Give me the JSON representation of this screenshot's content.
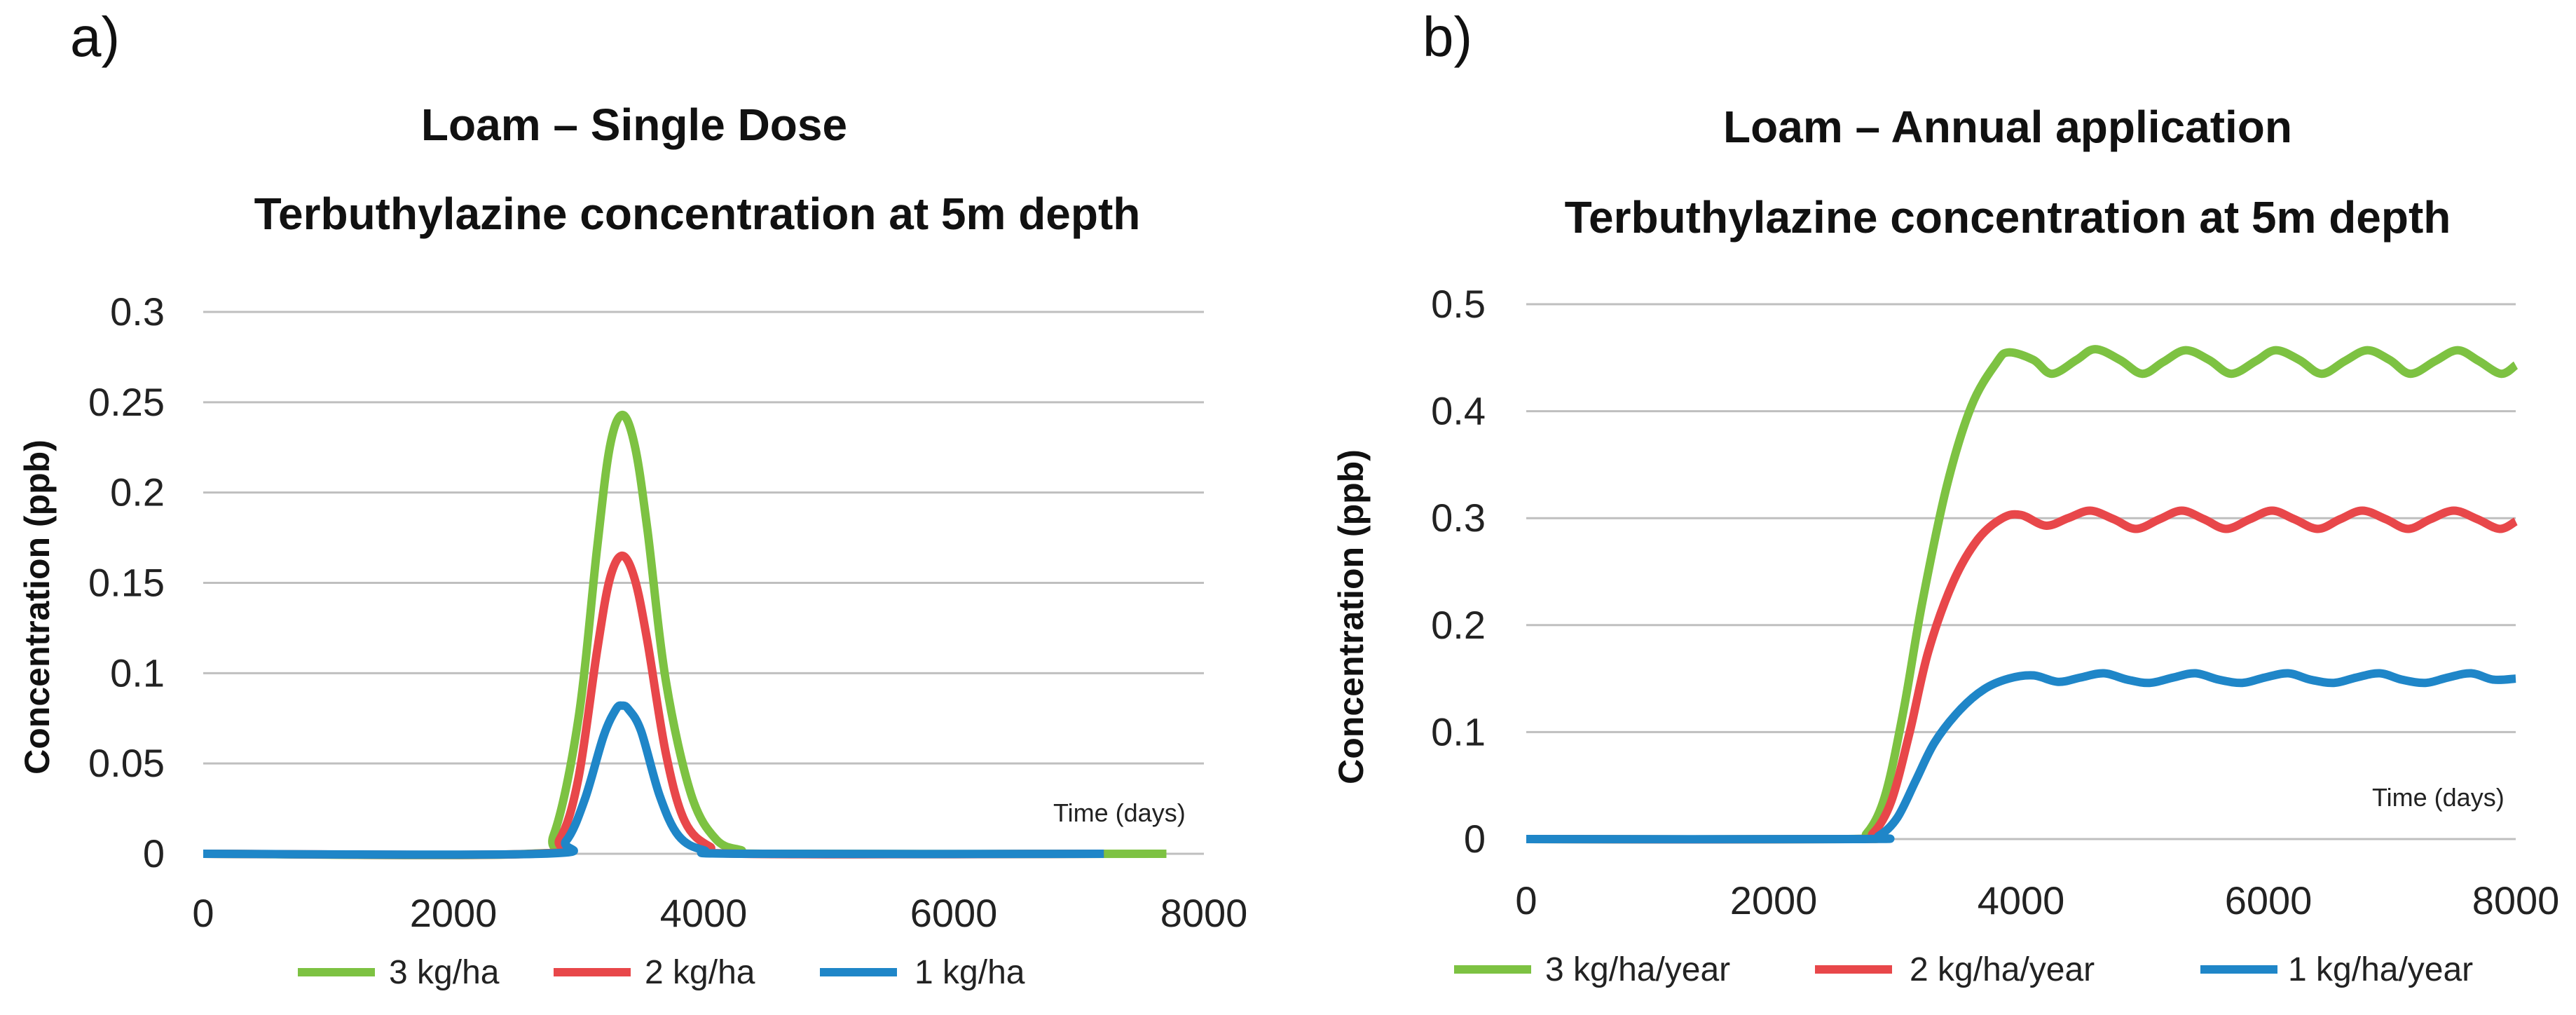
{
  "chart_data": [
    {
      "panel_label": "a)",
      "type": "line",
      "title": [
        "Loam – Single Dose",
        "Terbuthylazine concentration at 5m depth"
      ],
      "ylabel": "Concentration (ppb)",
      "xlabel": "Time (days)",
      "xlim": [
        0,
        8000
      ],
      "ylim": [
        0,
        0.3
      ],
      "xticks": [
        0,
        2000,
        4000,
        6000,
        8000
      ],
      "yticks": [
        0,
        0.05,
        0.1,
        0.15,
        0.2,
        0.25,
        0.3
      ],
      "ytick_labels": [
        "0",
        "0.05",
        "0.1",
        "0.15",
        "0.2",
        "0.25",
        "0.3"
      ],
      "grid": true,
      "legend_position": "bottom",
      "series": [
        {
          "name": "3 kg/ha",
          "color": "#7dc242",
          "x": [
            0,
            2600,
            2800,
            3000,
            3150,
            3250,
            3350,
            3450,
            3550,
            3700,
            3900,
            4100,
            4300,
            4500,
            7700
          ],
          "y": [
            0,
            0,
            0.01,
            0.075,
            0.17,
            0.225,
            0.243,
            0.226,
            0.18,
            0.095,
            0.033,
            0.008,
            0.002,
            0,
            0
          ]
        },
        {
          "name": "2 kg/ha",
          "color": "#e8474a",
          "x": [
            0,
            2650,
            2850,
            3000,
            3150,
            3250,
            3350,
            3450,
            3550,
            3700,
            3850,
            4050,
            4300,
            7200
          ],
          "y": [
            0,
            0,
            0.008,
            0.042,
            0.113,
            0.152,
            0.165,
            0.152,
            0.118,
            0.055,
            0.018,
            0.004,
            0,
            0
          ]
        },
        {
          "name": "1 kg/ha",
          "color": "#1f86c8",
          "x": [
            0,
            2700,
            2900,
            3050,
            3200,
            3300,
            3350,
            3400,
            3500,
            3650,
            3800,
            4000,
            4300,
            7200
          ],
          "y": [
            0,
            0,
            0.007,
            0.03,
            0.065,
            0.08,
            0.082,
            0.08,
            0.068,
            0.032,
            0.01,
            0.002,
            0,
            0
          ]
        }
      ]
    },
    {
      "panel_label": "b)",
      "type": "line",
      "title": [
        "Loam – Annual application",
        "Terbuthylazine concentration at 5m depth"
      ],
      "ylabel": "Concentration (ppb)",
      "xlabel": "Time (days)",
      "xlim": [
        0,
        8000
      ],
      "ylim": [
        0,
        0.5
      ],
      "xticks": [
        0,
        2000,
        4000,
        6000,
        8000
      ],
      "yticks": [
        0,
        0.1,
        0.2,
        0.3,
        0.4,
        0.5
      ],
      "ytick_labels": [
        "0",
        "0.1",
        "0.2",
        "0.3",
        "0.4",
        "0.5"
      ],
      "grid": true,
      "legend_position": "bottom",
      "series": [
        {
          "name": "3 kg/ha/year",
          "color": "#7dc242",
          "x": [
            0,
            2600,
            2750,
            2900,
            3050,
            3200,
            3400,
            3600,
            3800,
            3900,
            4100,
            4250,
            4450,
            4600,
            4800,
            4980,
            5150,
            5330,
            5520,
            5700,
            5900,
            6060,
            6250,
            6430,
            6620,
            6800,
            6980,
            7150,
            7350,
            7530,
            7700,
            7880,
            8000
          ],
          "y": [
            0,
            0,
            0.005,
            0.04,
            0.12,
            0.22,
            0.33,
            0.405,
            0.445,
            0.455,
            0.448,
            0.435,
            0.448,
            0.458,
            0.448,
            0.435,
            0.446,
            0.457,
            0.448,
            0.435,
            0.447,
            0.457,
            0.448,
            0.435,
            0.447,
            0.457,
            0.448,
            0.435,
            0.447,
            0.457,
            0.447,
            0.435,
            0.443
          ]
        },
        {
          "name": "2 kg/ha/year",
          "color": "#e8474a",
          "x": [
            0,
            2650,
            2800,
            2950,
            3100,
            3250,
            3450,
            3650,
            3850,
            4000,
            4200,
            4380,
            4560,
            4750,
            4930,
            5120,
            5300,
            5480,
            5660,
            5850,
            6030,
            6210,
            6400,
            6580,
            6760,
            6950,
            7130,
            7310,
            7500,
            7690,
            7870,
            8000
          ],
          "y": [
            0,
            0,
            0.005,
            0.035,
            0.1,
            0.175,
            0.24,
            0.28,
            0.3,
            0.303,
            0.293,
            0.3,
            0.307,
            0.299,
            0.29,
            0.299,
            0.307,
            0.299,
            0.29,
            0.299,
            0.307,
            0.299,
            0.29,
            0.299,
            0.307,
            0.299,
            0.29,
            0.299,
            0.307,
            0.299,
            0.29,
            0.297
          ]
        },
        {
          "name": "1 kg/ha/year",
          "color": "#1f86c8",
          "x": [
            0,
            2700,
            2850,
            3000,
            3150,
            3300,
            3500,
            3700,
            3900,
            4100,
            4300,
            4480,
            4670,
            4860,
            5040,
            5230,
            5410,
            5600,
            5790,
            5970,
            6160,
            6340,
            6530,
            6710,
            6900,
            7080,
            7270,
            7450,
            7640,
            7820,
            8000
          ],
          "y": [
            0,
            0,
            0.003,
            0.02,
            0.055,
            0.09,
            0.12,
            0.14,
            0.15,
            0.153,
            0.147,
            0.151,
            0.155,
            0.149,
            0.146,
            0.151,
            0.155,
            0.149,
            0.146,
            0.151,
            0.155,
            0.149,
            0.146,
            0.151,
            0.155,
            0.149,
            0.146,
            0.151,
            0.155,
            0.149,
            0.15
          ]
        }
      ]
    }
  ]
}
